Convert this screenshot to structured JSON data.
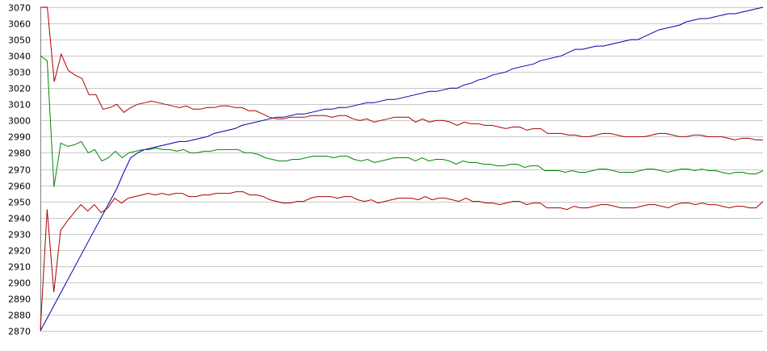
{
  "chart_data": {
    "type": "line",
    "title": "",
    "xlabel": "",
    "ylabel": "",
    "ylim": [
      2870,
      3070
    ],
    "yticks": [
      2870,
      2880,
      2890,
      2900,
      2910,
      2920,
      2930,
      2940,
      2950,
      2960,
      2970,
      2980,
      2990,
      3000,
      3010,
      3020,
      3030,
      3040,
      3050,
      3060,
      3070
    ],
    "grid": true,
    "legend": "none",
    "series": [
      {
        "color": "#0000aa",
        "values": [
          2870,
          2878,
          2886,
          2894,
          2902,
          2910,
          2918,
          2926,
          2934,
          2942,
          2950,
          2958,
          2968,
          2977,
          2980,
          2982,
          2983,
          2984,
          2985,
          2986,
          2987,
          2987,
          2988,
          2989,
          2990,
          2992,
          2993,
          2994,
          2995,
          2997,
          2998,
          2999,
          3000,
          3001,
          3002,
          3002,
          3003,
          3004,
          3004,
          3005,
          3006,
          3007,
          3007,
          3008,
          3008,
          3009,
          3010,
          3011,
          3011,
          3012,
          3013,
          3013,
          3014,
          3015,
          3016,
          3017,
          3018,
          3018,
          3019,
          3020,
          3020,
          3022,
          3023,
          3025,
          3026,
          3028,
          3029,
          3030,
          3032,
          3033,
          3034,
          3035,
          3037,
          3038,
          3039,
          3040,
          3042,
          3044,
          3044,
          3045,
          3046,
          3046,
          3047,
          3048,
          3049,
          3050,
          3050,
          3052,
          3054,
          3056,
          3057,
          3058,
          3059,
          3061,
          3062,
          3063,
          3063,
          3064,
          3065,
          3066,
          3066,
          3067,
          3068,
          3069,
          3070
        ]
      },
      {
        "color": "#aa0000",
        "values": [
          3070,
          3070,
          3024,
          3041,
          3031,
          3028,
          3026,
          3016,
          3016,
          3007,
          3008,
          3010,
          3005,
          3008,
          3010,
          3011,
          3012,
          3011,
          3010,
          3009,
          3008,
          3009,
          3007,
          3007,
          3008,
          3008,
          3009,
          3009,
          3008,
          3008,
          3006,
          3006,
          3004,
          3002,
          3001,
          3001,
          3002,
          3002,
          3002,
          3003,
          3003,
          3003,
          3002,
          3003,
          3003,
          3001,
          3000,
          3001,
          2999,
          3000,
          3001,
          3002,
          3002,
          3002,
          2999,
          3001,
          2999,
          3000,
          3000,
          2999,
          2997,
          2999,
          2998,
          2998,
          2997,
          2997,
          2996,
          2995,
          2996,
          2996,
          2994,
          2995,
          2995,
          2992,
          2992,
          2992,
          2991,
          2991,
          2990,
          2990,
          2991,
          2992,
          2992,
          2991,
          2990,
          2990,
          2990,
          2990,
          2991,
          2992,
          2992,
          2991,
          2990,
          2990,
          2991,
          2991,
          2990,
          2990,
          2990,
          2989,
          2988,
          2989,
          2989,
          2988,
          2988
        ]
      },
      {
        "color": "#008800",
        "values": [
          3040,
          3037,
          2959,
          2986,
          2984,
          2985,
          2987,
          2980,
          2982,
          2975,
          2977,
          2981,
          2977,
          2980,
          2981,
          2982,
          2982,
          2983,
          2982,
          2982,
          2981,
          2982,
          2980,
          2980,
          2981,
          2981,
          2982,
          2982,
          2982,
          2982,
          2980,
          2980,
          2979,
          2977,
          2976,
          2975,
          2975,
          2976,
          2976,
          2977,
          2978,
          2978,
          2978,
          2977,
          2978,
          2978,
          2976,
          2975,
          2976,
          2974,
          2975,
          2976,
          2977,
          2977,
          2977,
          2975,
          2977,
          2975,
          2976,
          2976,
          2975,
          2973,
          2975,
          2974,
          2974,
          2973,
          2973,
          2972,
          2972,
          2973,
          2973,
          2971,
          2972,
          2972,
          2969,
          2969,
          2969,
          2968,
          2969,
          2968,
          2968,
          2969,
          2970,
          2970,
          2969,
          2968,
          2968,
          2968,
          2969,
          2970,
          2970,
          2969,
          2968,
          2969,
          2970,
          2970,
          2969,
          2970,
          2969,
          2969,
          2968,
          2967,
          2968,
          2968,
          2967,
          2967,
          2969
        ]
      },
      {
        "color": "#aa0000",
        "values": [
          2871,
          2945,
          2894,
          2932,
          2938,
          2943,
          2948,
          2944,
          2948,
          2943,
          2946,
          2952,
          2949,
          2952,
          2953,
          2954,
          2955,
          2954,
          2955,
          2954,
          2955,
          2955,
          2953,
          2953,
          2954,
          2954,
          2955,
          2955,
          2955,
          2956,
          2956,
          2954,
          2954,
          2953,
          2951,
          2950,
          2949,
          2949,
          2950,
          2950,
          2952,
          2953,
          2953,
          2953,
          2952,
          2953,
          2953,
          2951,
          2950,
          2951,
          2949,
          2950,
          2951,
          2952,
          2952,
          2952,
          2951,
          2953,
          2951,
          2952,
          2952,
          2951,
          2950,
          2952,
          2950,
          2950,
          2949,
          2949,
          2948,
          2949,
          2950,
          2950,
          2948,
          2949,
          2949,
          2946,
          2946,
          2946,
          2945,
          2947,
          2946,
          2946,
          2947,
          2948,
          2948,
          2947,
          2946,
          2946,
          2946,
          2947,
          2948,
          2948,
          2947,
          2946,
          2948,
          2949,
          2949,
          2948,
          2949,
          2948,
          2948,
          2947,
          2946,
          2947,
          2947,
          2946,
          2946,
          2950
        ]
      }
    ]
  }
}
